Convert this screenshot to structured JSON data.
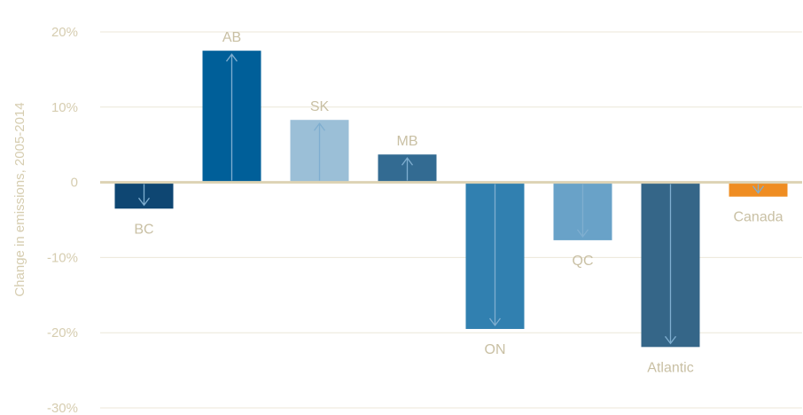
{
  "chart_data": {
    "type": "bar",
    "categories": [
      "BC",
      "AB",
      "SK",
      "MB",
      "ON",
      "QC",
      "Atlantic",
      "Canada"
    ],
    "values": [
      -3.5,
      17.5,
      8.3,
      3.7,
      -19.5,
      -7.7,
      -21.9,
      -1.9
    ],
    "ylabel": "Change in emissions, 2005-2014",
    "ylim": [
      -30,
      20
    ],
    "yticks": [
      20,
      10,
      0,
      -10,
      -20,
      -30
    ],
    "ytick_labels": [
      "20%",
      "10%",
      "0",
      "-10%",
      "-20%",
      "-30%"
    ],
    "grid": true,
    "colors": [
      "#0e4672",
      "#005f99",
      "#9bbfd7",
      "#336b92",
      "#3180b0",
      "#69a2c8",
      "#356688",
      "#ef8d22"
    ],
    "gridline_color": "#ece7d8",
    "zero_line_color": "#ddd3b4",
    "arrow_color": "#7faed0"
  }
}
